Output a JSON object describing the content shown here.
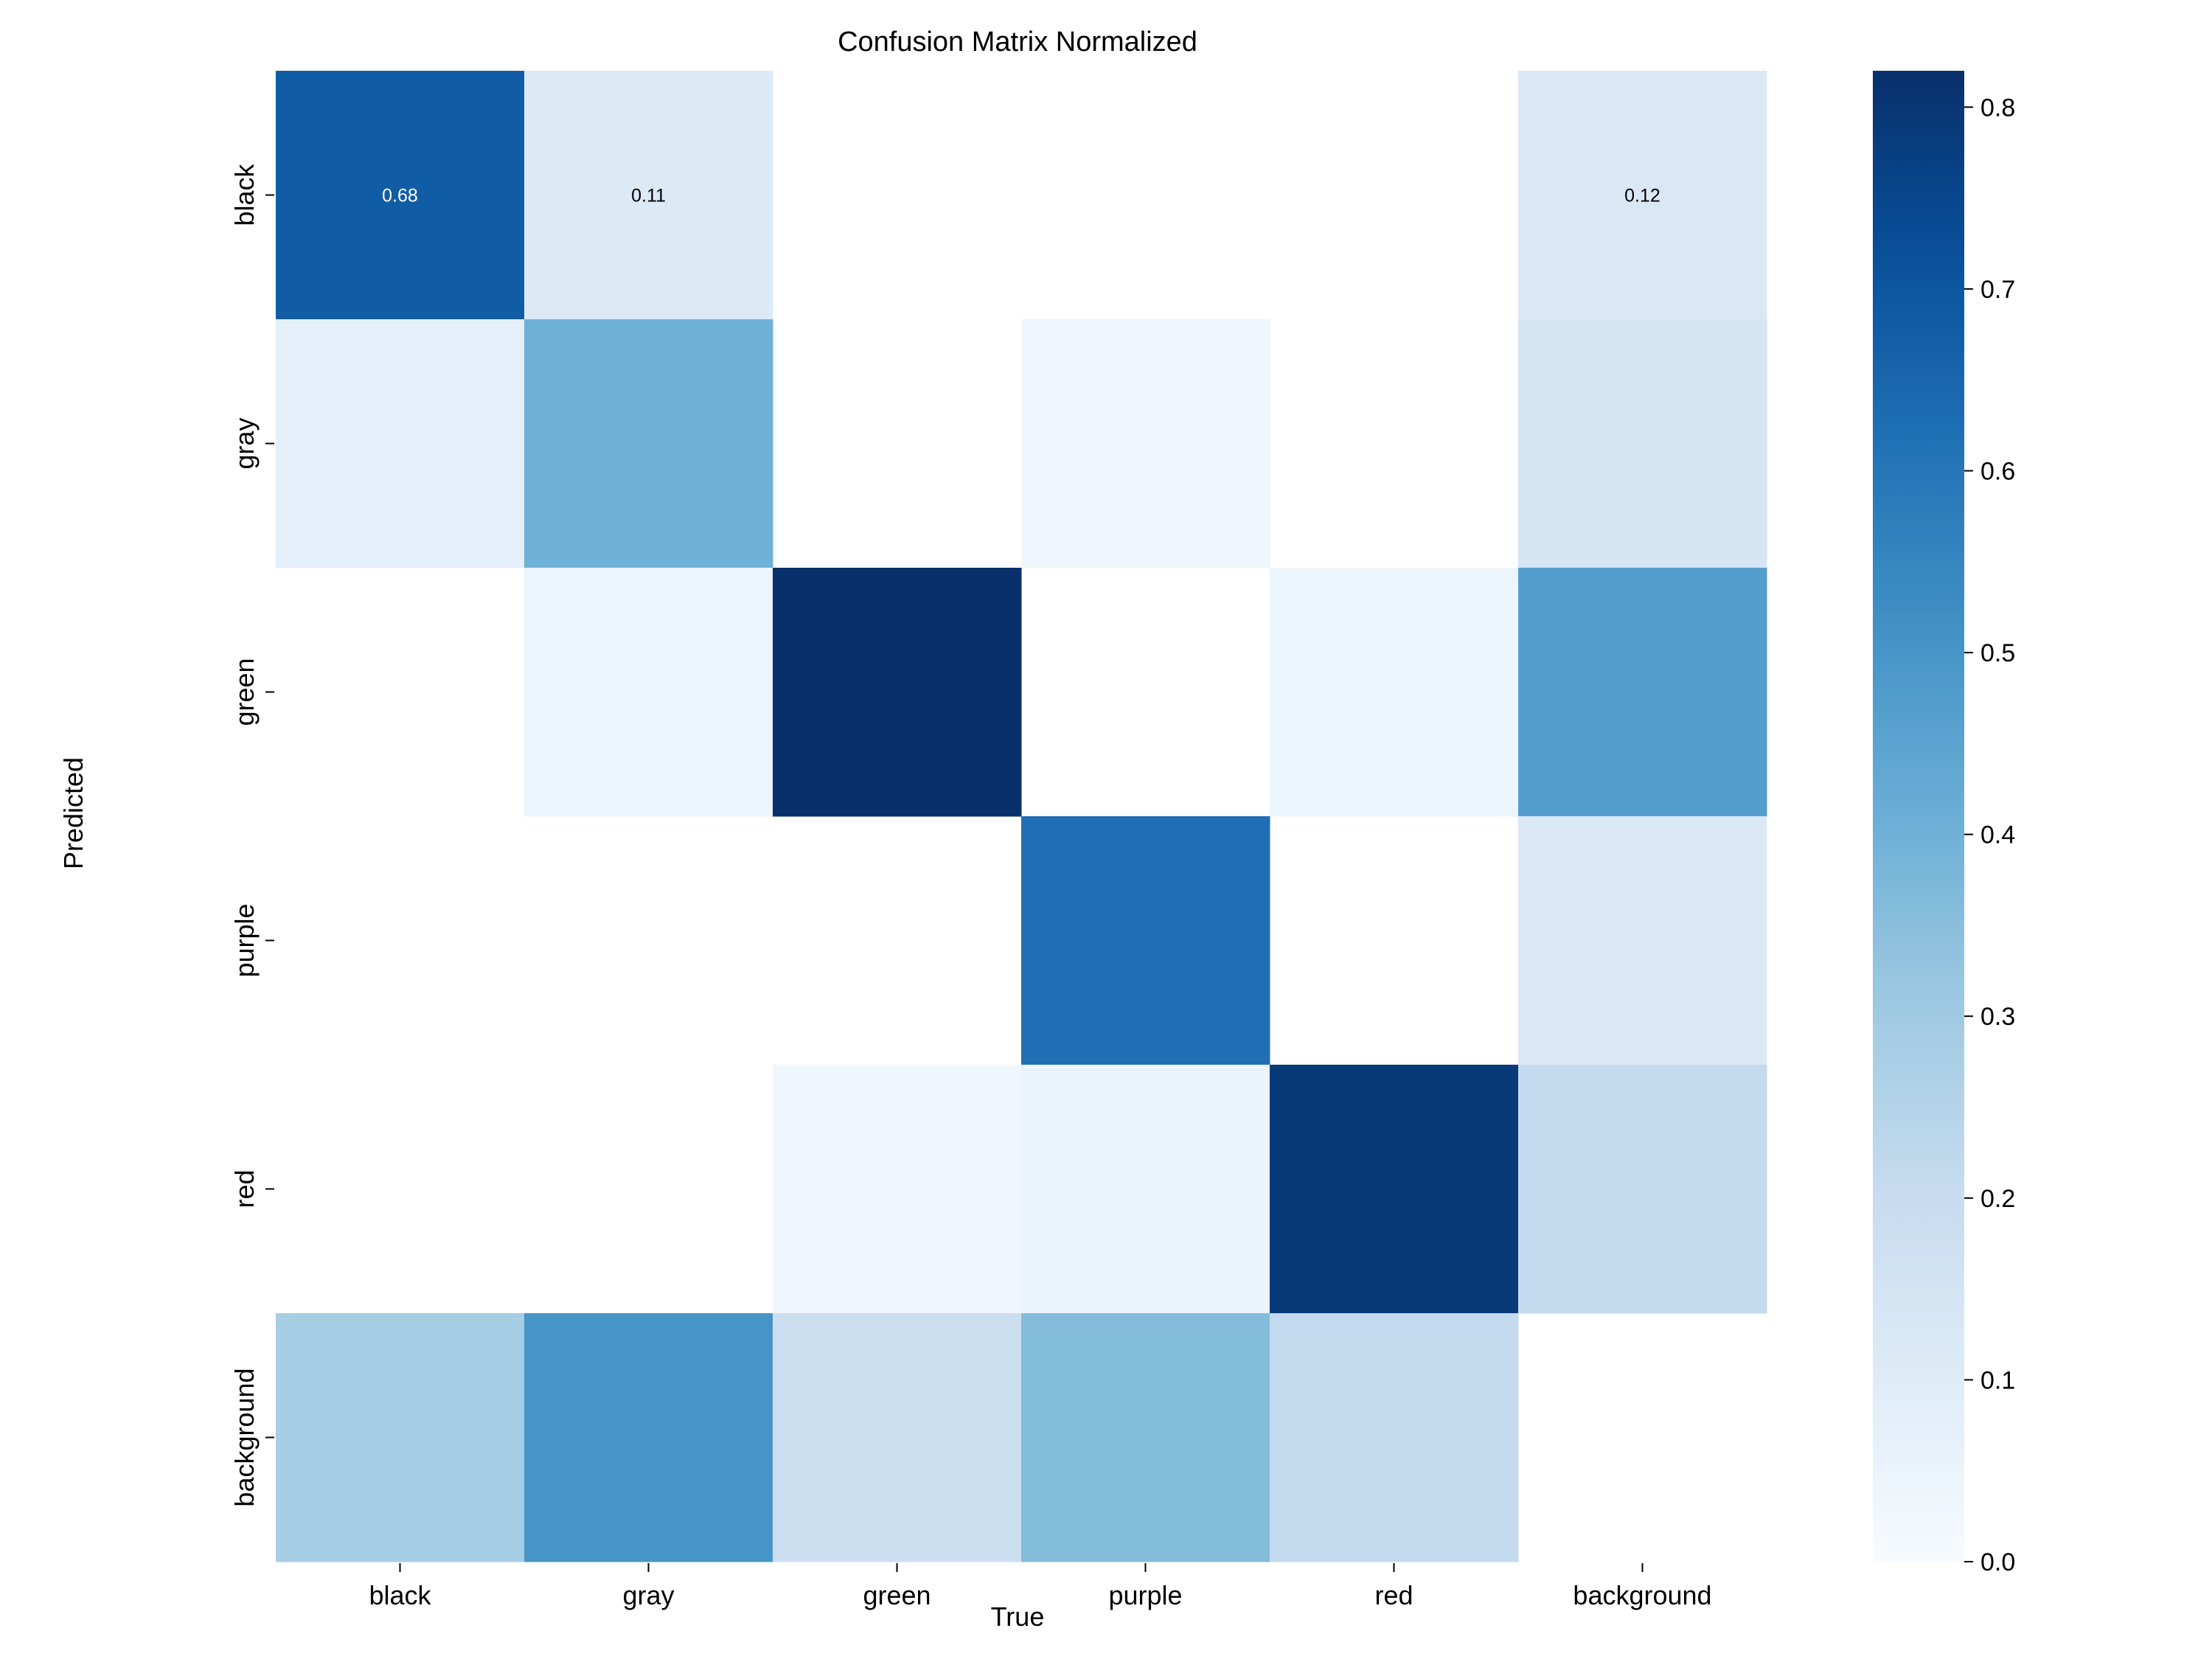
{
  "chart_data": {
    "type": "heatmap",
    "title": "Confusion Matrix Normalized",
    "xlabel": "True",
    "ylabel": "Predicted",
    "x_categories": [
      "black",
      "gray",
      "green",
      "purple",
      "red",
      "background"
    ],
    "y_categories": [
      "black",
      "gray",
      "green",
      "purple",
      "red",
      "background"
    ],
    "values": [
      [
        0.68,
        0.11,
        0.0,
        0.0,
        0.0,
        0.12
      ],
      [
        0.07,
        0.4,
        0.0,
        0.03,
        0.0,
        0.14
      ],
      [
        0.0,
        0.04,
        0.82,
        0.0,
        0.04,
        0.47
      ],
      [
        0.0,
        0.0,
        0.0,
        0.62,
        0.0,
        0.12
      ],
      [
        0.0,
        0.0,
        0.03,
        0.05,
        0.79,
        0.21
      ],
      [
        0.29,
        0.5,
        0.18,
        0.36,
        0.21,
        0.0
      ]
    ],
    "annotations": [
      {
        "row": 0,
        "col": 0,
        "text": "0.68"
      },
      {
        "row": 0,
        "col": 1,
        "text": "0.11"
      },
      {
        "row": 0,
        "col": 5,
        "text": "0.12"
      }
    ],
    "colorscale": "Blues",
    "colorbar": {
      "range": [
        0.0,
        0.82
      ],
      "ticks": [
        0.0,
        0.1,
        0.2,
        0.3,
        0.4,
        0.5,
        0.6,
        0.7,
        0.8
      ],
      "tick_labels": [
        "0.0",
        "0.1",
        "0.2",
        "0.3",
        "0.4",
        "0.5",
        "0.6",
        "0.7",
        "0.8"
      ]
    },
    "grid": false,
    "legend": "colorbar-right"
  }
}
